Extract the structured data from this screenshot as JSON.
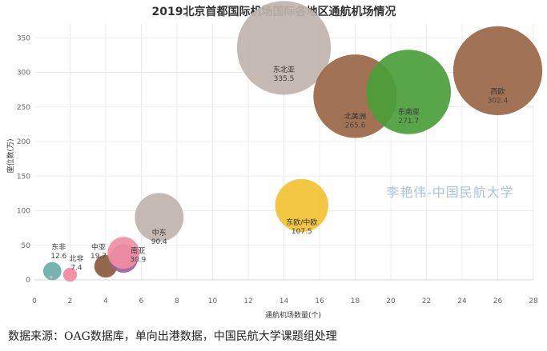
{
  "chart_data": {
    "type": "scatter",
    "title": "2019北京首都国际机场国际各地区通航机场情况",
    "xlabel": "通航机场数量(个)",
    "ylabel": "座位数(万)",
    "xlim": [
      0,
      28
    ],
    "ylim": [
      0,
      370
    ],
    "xticks": [
      0,
      2,
      4,
      6,
      8,
      10,
      12,
      14,
      16,
      18,
      20,
      22,
      24,
      26,
      28
    ],
    "yticks": [
      0,
      50,
      100,
      150,
      200,
      250,
      300,
      350
    ],
    "grid": true,
    "legend": "none",
    "points": [
      {
        "name": "东非",
        "x": 1,
        "y": 12.6,
        "value_label": "12.6",
        "color": "#6aaea8"
      },
      {
        "name": "北非",
        "x": 2,
        "y": 7.4,
        "value_label": "7.4",
        "color": "#f28aa0"
      },
      {
        "name": "中亚",
        "x": 4,
        "y": 19.7,
        "value_label": "19.7",
        "color": "#8a5a3c"
      },
      {
        "name": "南亚",
        "x": 5,
        "y": 30.9,
        "value_label": "30.9",
        "color": "#9b5f9a"
      },
      {
        "name": "",
        "x": 5,
        "y": 39,
        "value_label": "",
        "color": "#ef8fa3"
      },
      {
        "name": "中东",
        "x": 7,
        "y": 90.4,
        "value_label": "90.4",
        "color": "#bfb3ad"
      },
      {
        "name": "东欧/中欧",
        "x": 15,
        "y": 107.5,
        "value_label": "107.5",
        "color": "#f2c233"
      },
      {
        "name": "东北亚",
        "x": 14,
        "y": 335.5,
        "value_label": "335.5",
        "color": "#bfb3ad"
      },
      {
        "name": "北美洲",
        "x": 18,
        "y": 265.6,
        "value_label": "265.6",
        "color": "#9a6646"
      },
      {
        "name": "东南亚",
        "x": 21,
        "y": 271.7,
        "value_label": "271.7",
        "color": "#4a9e3a"
      },
      {
        "name": "西欧",
        "x": 26,
        "y": 302.4,
        "value_label": "302.4",
        "color": "#9a6646"
      }
    ]
  },
  "watermark": "李艳伟-中国民航大学",
  "source": "数据来源：OAG数据库，单向出港数据，中国民航大学课题组处理"
}
